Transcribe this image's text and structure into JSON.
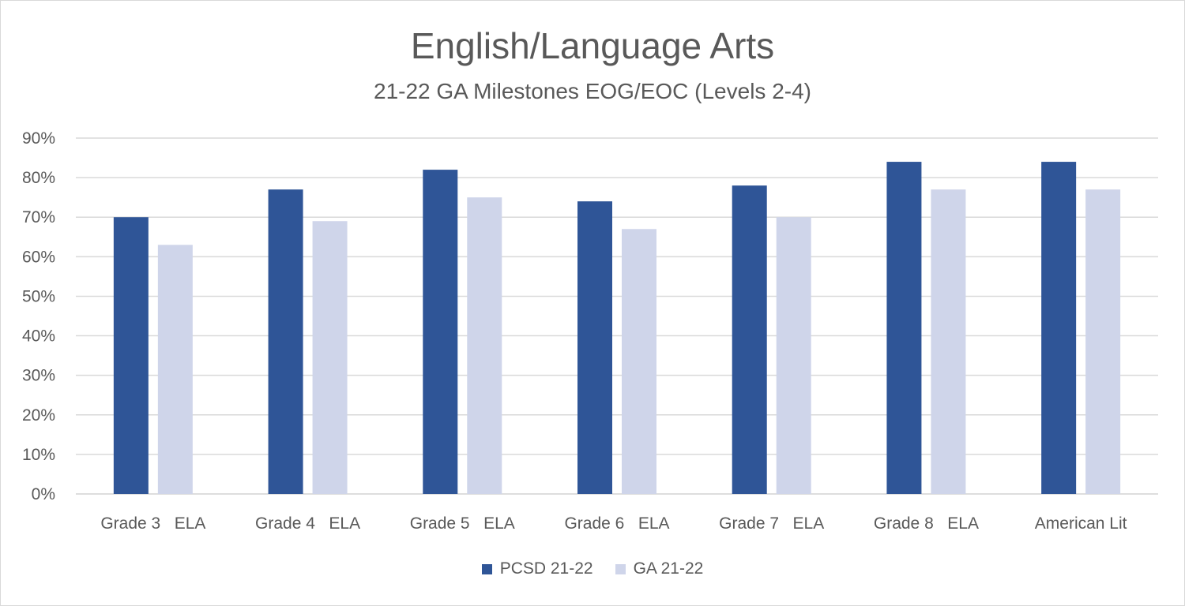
{
  "chart_data": {
    "type": "bar",
    "title": "English/Language Arts",
    "subtitle": "21-22 GA Milestones EOG/EOC (Levels 2-4)",
    "categories": [
      "Grade 3   ELA",
      "Grade 4   ELA",
      "Grade 5   ELA",
      "Grade 6   ELA",
      "Grade 7   ELA",
      "Grade 8   ELA",
      "American Lit"
    ],
    "series": [
      {
        "name": "PCSD 21-22",
        "color": "#2f5597",
        "values": [
          70,
          77,
          82,
          74,
          78,
          84,
          84
        ]
      },
      {
        "name": "GA 21-22",
        "color": "#cfd5ea",
        "values": [
          63,
          69,
          75,
          67,
          70,
          77,
          77
        ]
      }
    ],
    "yticks": [
      "0%",
      "10%",
      "20%",
      "30%",
      "40%",
      "50%",
      "60%",
      "70%",
      "80%",
      "90%"
    ],
    "ylim": [
      0,
      90
    ],
    "grid": true,
    "legend_position": "bottom"
  }
}
